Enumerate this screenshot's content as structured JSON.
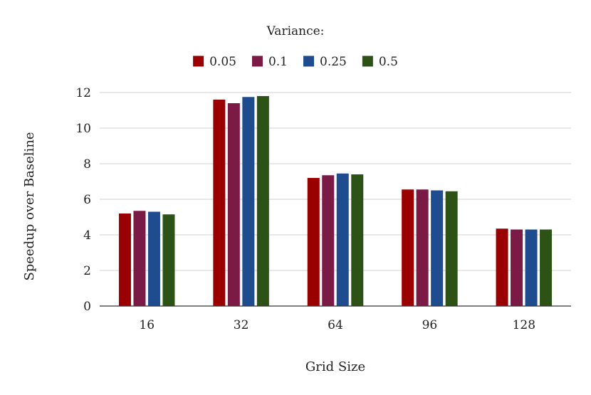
{
  "chart_data": {
    "type": "bar",
    "title": "",
    "legend_title": "Variance:",
    "legend_position": "top-center",
    "xlabel": "Grid Size",
    "ylabel": "Speedup over Baseline",
    "categories": [
      "16",
      "32",
      "64",
      "96",
      "128"
    ],
    "ylim": [
      0,
      12
    ],
    "yticks": [
      "0",
      "2",
      "4",
      "6",
      "8",
      "10",
      "12"
    ],
    "grid": true,
    "series": [
      {
        "name": "0.05",
        "color": "#9b0000",
        "values": [
          5.2,
          11.6,
          7.2,
          6.55,
          4.35
        ]
      },
      {
        "name": "0.1",
        "color": "#7a1a45",
        "values": [
          5.35,
          11.4,
          7.35,
          6.55,
          4.3
        ]
      },
      {
        "name": "0.25",
        "color": "#1f4b8f",
        "values": [
          5.3,
          11.75,
          7.45,
          6.5,
          4.3
        ]
      },
      {
        "name": "0.5",
        "color": "#2d5216",
        "values": [
          5.15,
          11.8,
          7.4,
          6.45,
          4.3
        ]
      }
    ]
  }
}
